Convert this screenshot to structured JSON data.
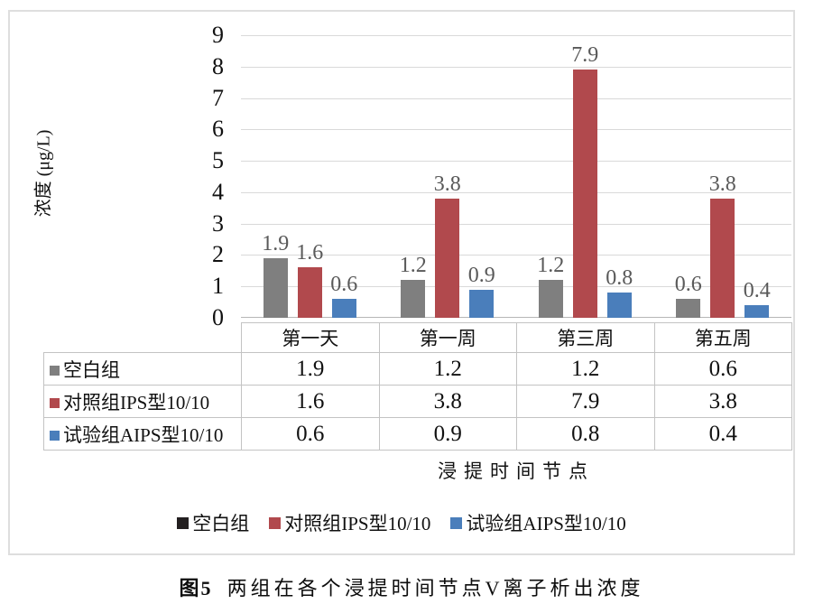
{
  "chart_data": {
    "type": "bar",
    "title": "",
    "ylabel": "浓度 (μg/L)",
    "xlabel": "浸提时间节点",
    "ylim": [
      0,
      9
    ],
    "yticks": [
      0,
      1,
      2,
      3,
      4,
      5,
      6,
      7,
      8,
      9
    ],
    "grid": true,
    "legend_position": "bottom",
    "data_table_shown": true,
    "categories": [
      "第一天",
      "第一周",
      "第三周",
      "第五周"
    ],
    "series": [
      {
        "name": "空白组",
        "color": "#7f7f7f",
        "legend_swatch_color": "#231f20",
        "values": [
          1.9,
          1.2,
          1.2,
          0.6
        ]
      },
      {
        "name": "对照组IPS型10/10",
        "color": "#b1494d",
        "legend_swatch_color": "#b1494d",
        "values": [
          1.6,
          3.8,
          7.9,
          3.8
        ]
      },
      {
        "name": "试验组AIPS型10/10",
        "color": "#4a7ebb",
        "legend_swatch_color": "#4a7ebb",
        "values": [
          0.6,
          0.9,
          0.8,
          0.4
        ]
      }
    ]
  },
  "caption": {
    "label": "图5",
    "text": "两组在各个浸提时间节点V离子析出浓度"
  },
  "colors": {
    "frame_border": "#dedede",
    "gridline": "#d9d9d9",
    "axis_line": "#b7b7b7",
    "table_border": "#c3c3c3",
    "bar_value_label": "#595959"
  }
}
